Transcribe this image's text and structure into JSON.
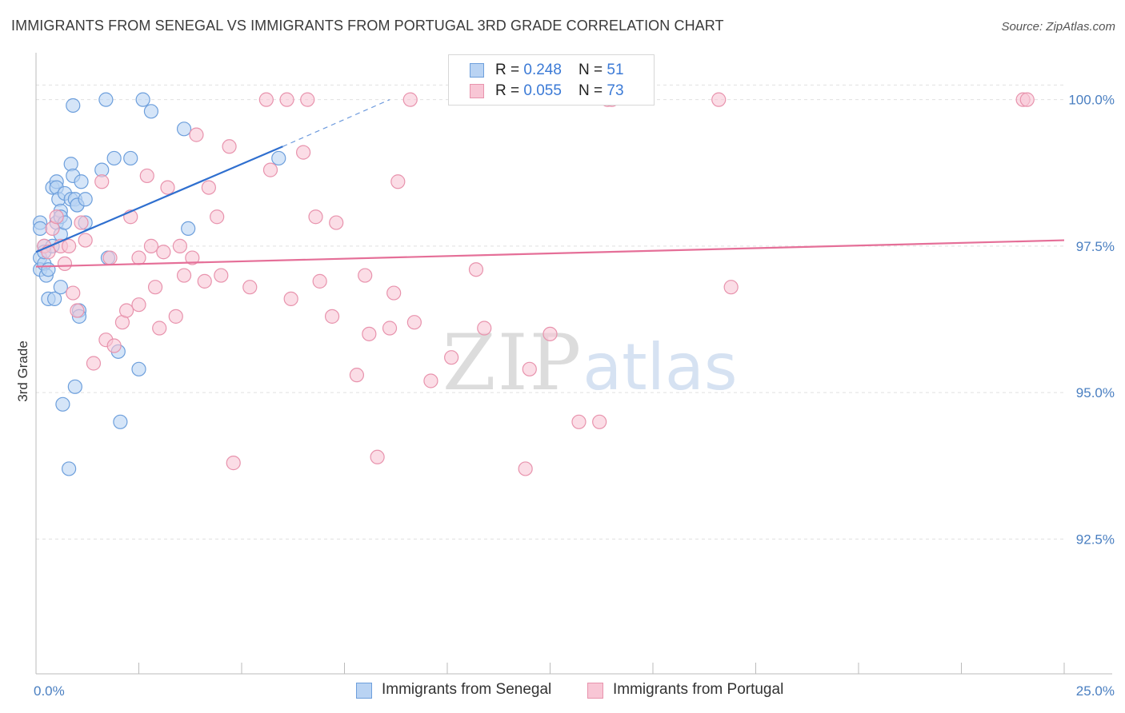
{
  "title": "IMMIGRANTS FROM SENEGAL VS IMMIGRANTS FROM PORTUGAL 3RD GRADE CORRELATION CHART",
  "source": "Source: ZipAtlas.com",
  "watermark": {
    "zip": "ZIP",
    "atlas": "atlas"
  },
  "legend": {
    "senegal": {
      "r_label": "R = ",
      "r_value": "0.248",
      "n_label": "N = ",
      "n_value": "51"
    },
    "portugal": {
      "r_label": "R = ",
      "r_value": "0.055",
      "n_label": "N = ",
      "n_value": "73"
    }
  },
  "chart_data": {
    "type": "scatter",
    "title": "IMMIGRANTS FROM SENEGAL VS IMMIGRANTS FROM PORTUGAL 3RD GRADE CORRELATION CHART",
    "xlabel": "",
    "ylabel": "3rd Grade",
    "xlim": [
      0,
      25
    ],
    "ylim": [
      90.2,
      100.8
    ],
    "x_tick_labels": [
      "0.0%",
      "25.0%"
    ],
    "y_ticks": [
      {
        "value": 100.0,
        "label": "100.0%"
      },
      {
        "value": 97.5,
        "label": "97.5%"
      },
      {
        "value": 95.0,
        "label": "95.0%"
      },
      {
        "value": 92.5,
        "label": "92.5%"
      }
    ],
    "grid": true,
    "colors": {
      "senegal_fill": "#b9d3f3",
      "senegal_stroke": "#6d9fdc",
      "senegal_line": "#2f6fcf",
      "portugal_fill": "#f8c6d5",
      "portugal_stroke": "#e893ad",
      "portugal_line": "#e56f98",
      "tick_label": "#4a7fc1",
      "grid": "#e0e0e0"
    },
    "series": [
      {
        "name": "Immigrants from Senegal",
        "R": 0.248,
        "N": 51,
        "trend": {
          "x0": 0.0,
          "y0": 97.4,
          "x1": 6.0,
          "y1": 99.2,
          "dash_to_x": 8.6,
          "dash_to_y": 100.0
        },
        "points": [
          [
            0.1,
            97.9
          ],
          [
            0.1,
            97.8
          ],
          [
            0.1,
            97.3
          ],
          [
            0.1,
            97.1
          ],
          [
            0.2,
            97.2
          ],
          [
            0.2,
            97.5
          ],
          [
            0.2,
            97.4
          ],
          [
            0.25,
            97.0
          ],
          [
            0.3,
            96.6
          ],
          [
            0.3,
            97.1
          ],
          [
            0.4,
            97.5
          ],
          [
            0.4,
            98.5
          ],
          [
            0.45,
            96.6
          ],
          [
            0.5,
            98.6
          ],
          [
            0.5,
            98.5
          ],
          [
            0.5,
            97.9
          ],
          [
            0.55,
            98.3
          ],
          [
            0.6,
            98.1
          ],
          [
            0.6,
            98.0
          ],
          [
            0.6,
            97.7
          ],
          [
            0.6,
            96.8
          ],
          [
            0.65,
            94.8
          ],
          [
            0.7,
            98.4
          ],
          [
            0.7,
            97.9
          ],
          [
            0.8,
            93.7
          ],
          [
            0.85,
            98.9
          ],
          [
            0.85,
            98.3
          ],
          [
            0.9,
            99.9
          ],
          [
            0.9,
            98.7
          ],
          [
            0.95,
            98.3
          ],
          [
            0.95,
            95.1
          ],
          [
            1.0,
            98.2
          ],
          [
            1.0,
            98.2
          ],
          [
            1.05,
            96.4
          ],
          [
            1.05,
            96.3
          ],
          [
            1.1,
            98.6
          ],
          [
            1.2,
            98.3
          ],
          [
            1.2,
            97.9
          ],
          [
            1.6,
            98.8
          ],
          [
            1.7,
            100.0
          ],
          [
            1.75,
            97.3
          ],
          [
            1.9,
            99.0
          ],
          [
            2.0,
            95.7
          ],
          [
            2.05,
            94.5
          ],
          [
            2.3,
            99.0
          ],
          [
            2.5,
            95.4
          ],
          [
            2.6,
            100.0
          ],
          [
            2.8,
            99.8
          ],
          [
            3.6,
            99.5
          ],
          [
            3.7,
            97.8
          ],
          [
            5.9,
            99.0
          ]
        ]
      },
      {
        "name": "Immigrants from Portugal",
        "R": 0.055,
        "N": 73,
        "trend": {
          "x0": 0.0,
          "y0": 97.15,
          "x1": 25.0,
          "y1": 97.6
        },
        "points": [
          [
            0.2,
            97.5
          ],
          [
            0.3,
            97.4
          ],
          [
            0.4,
            97.8
          ],
          [
            0.5,
            98.0
          ],
          [
            0.6,
            97.5
          ],
          [
            0.7,
            97.2
          ],
          [
            0.8,
            97.5
          ],
          [
            0.9,
            96.7
          ],
          [
            1.0,
            96.4
          ],
          [
            1.1,
            97.9
          ],
          [
            1.2,
            97.6
          ],
          [
            1.4,
            95.5
          ],
          [
            1.6,
            98.6
          ],
          [
            1.7,
            95.9
          ],
          [
            1.8,
            97.3
          ],
          [
            1.9,
            95.8
          ],
          [
            2.1,
            96.2
          ],
          [
            2.2,
            96.4
          ],
          [
            2.3,
            98.0
          ],
          [
            2.5,
            97.3
          ],
          [
            2.5,
            96.5
          ],
          [
            2.7,
            98.7
          ],
          [
            2.8,
            97.5
          ],
          [
            2.9,
            96.8
          ],
          [
            3.0,
            96.1
          ],
          [
            3.1,
            97.4
          ],
          [
            3.2,
            98.5
          ],
          [
            3.4,
            96.3
          ],
          [
            3.5,
            97.5
          ],
          [
            3.6,
            97.0
          ],
          [
            3.8,
            97.3
          ],
          [
            3.9,
            99.4
          ],
          [
            4.1,
            96.9
          ],
          [
            4.2,
            98.5
          ],
          [
            4.4,
            98.0
          ],
          [
            4.5,
            97.0
          ],
          [
            4.7,
            99.2
          ],
          [
            4.8,
            93.8
          ],
          [
            5.2,
            96.8
          ],
          [
            5.6,
            100.0
          ],
          [
            5.7,
            98.8
          ],
          [
            6.1,
            100.0
          ],
          [
            6.2,
            96.6
          ],
          [
            6.5,
            99.1
          ],
          [
            6.6,
            100.0
          ],
          [
            6.8,
            98.0
          ],
          [
            6.9,
            96.9
          ],
          [
            7.2,
            96.3
          ],
          [
            7.3,
            97.9
          ],
          [
            7.8,
            95.3
          ],
          [
            8.0,
            97.0
          ],
          [
            8.1,
            96.0
          ],
          [
            8.3,
            93.9
          ],
          [
            8.6,
            96.1
          ],
          [
            8.7,
            96.7
          ],
          [
            8.8,
            98.6
          ],
          [
            9.1,
            100.0
          ],
          [
            9.2,
            96.2
          ],
          [
            9.6,
            95.2
          ],
          [
            10.1,
            95.6
          ],
          [
            10.7,
            97.1
          ],
          [
            10.9,
            96.1
          ],
          [
            11.9,
            93.7
          ],
          [
            12.0,
            95.4
          ],
          [
            12.5,
            96.0
          ],
          [
            13.2,
            94.5
          ],
          [
            13.7,
            94.5
          ],
          [
            13.9,
            100.0
          ],
          [
            14.0,
            100.0
          ],
          [
            16.6,
            100.0
          ],
          [
            16.9,
            96.8
          ],
          [
            24.0,
            100.0
          ],
          [
            24.1,
            100.0
          ]
        ]
      }
    ]
  }
}
